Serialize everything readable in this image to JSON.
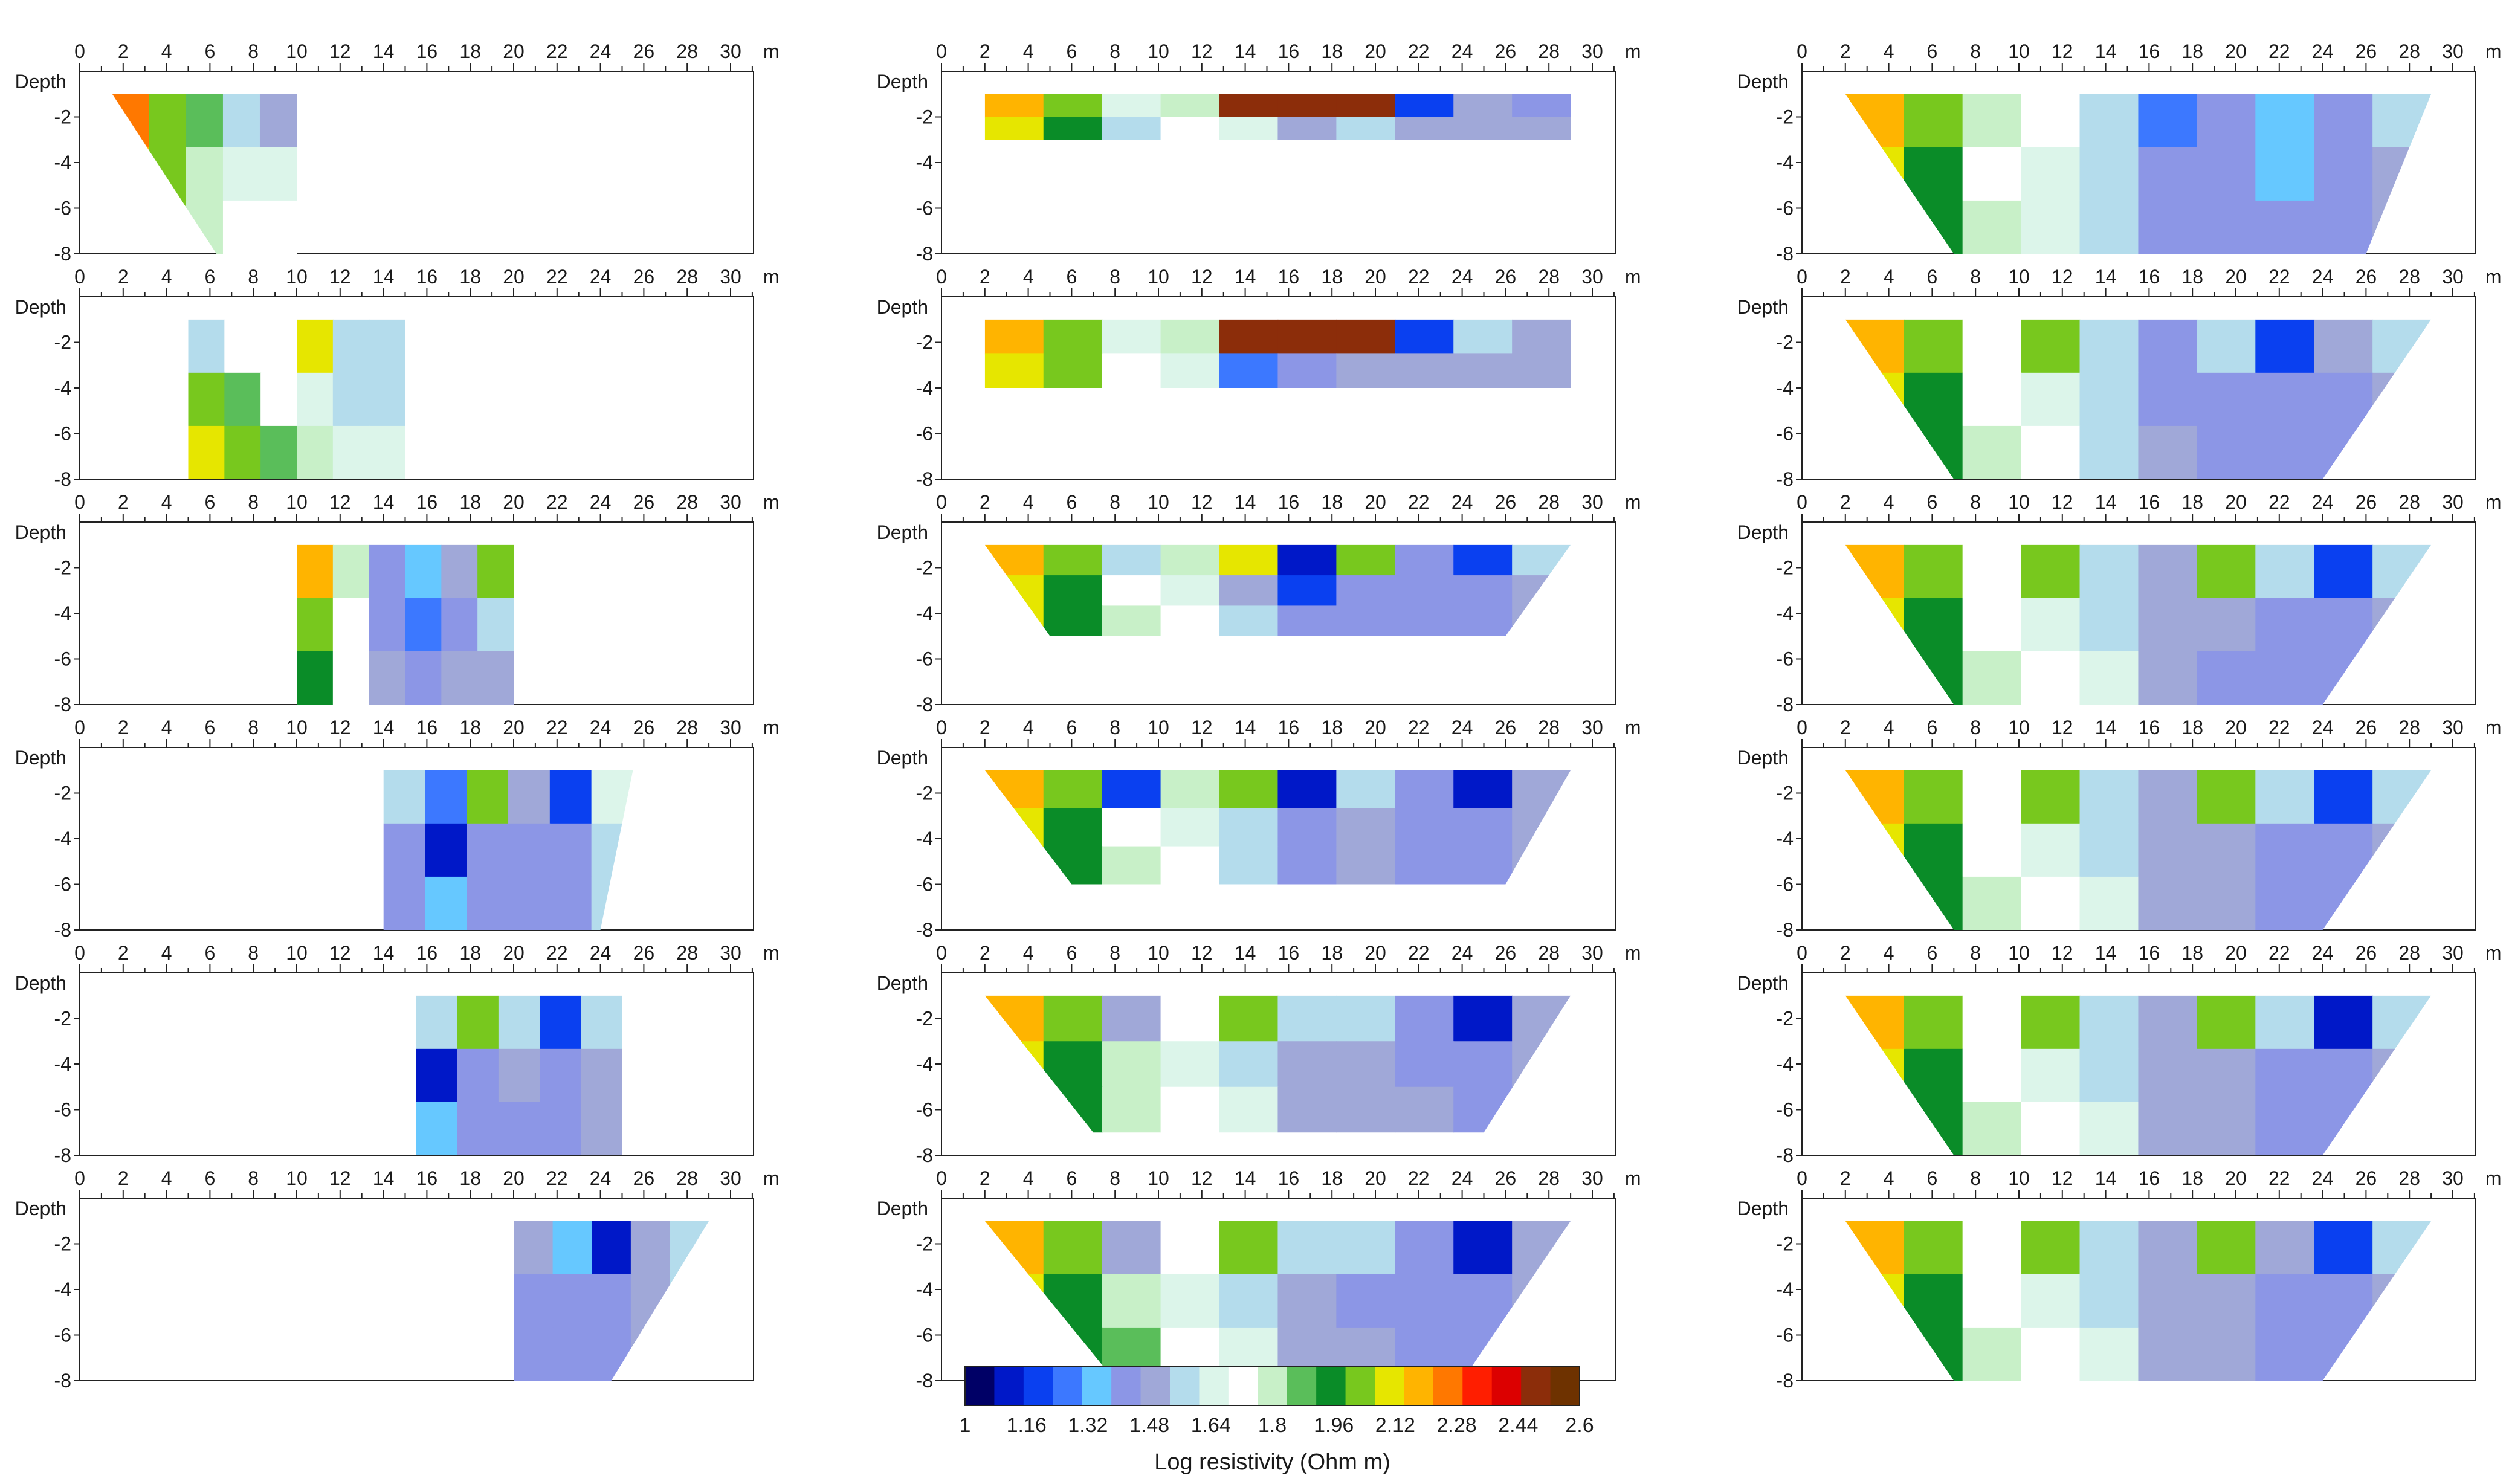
{
  "chart_data": {
    "type": "heatmap",
    "x_unit": "m",
    "y_label": "Depth",
    "x_range": [
      0,
      31
    ],
    "y_range": [
      -8,
      0
    ],
    "x_ticks": [
      0,
      2,
      4,
      6,
      8,
      10,
      12,
      14,
      16,
      18,
      20,
      22,
      24,
      26,
      28,
      30
    ],
    "y_ticks": [
      -2,
      -4,
      -6,
      -8
    ],
    "colorbar": {
      "label": "Log resistivity (Ohm m)",
      "ticks": [
        "1",
        "1.16",
        "1.32",
        "1.48",
        "1.64",
        "1.8",
        "1.96",
        "2.12",
        "2.28",
        "2.44",
        "2.6"
      ],
      "min": 1,
      "max": 2.6,
      "colors": [
        "#000066",
        "#0018c8",
        "#0a40f0",
        "#3c78ff",
        "#66c8ff",
        "#8c96e6",
        "#a0a8d8",
        "#b4dcec",
        "#dcf5ea",
        "#ffffff",
        "#c8f0c8",
        "#5abe5a",
        "#0a8c28",
        "#78c81e",
        "#e6e600",
        "#ffb400",
        "#ff7800",
        "#ff1e00",
        "#dc0000",
        "#8c2d0a",
        "#6e3200"
      ]
    },
    "columns": [
      {
        "name": "column-1",
        "panels": [
          {
            "type": "trapezoid",
            "x_left": 1.5,
            "x_right": 10,
            "x_left_bottom": 6.3,
            "x_right_bottom": 10,
            "depth_min": -1,
            "depth_max": -8,
            "values": [
              [
                2.24,
                2.05,
                1.85,
                1.6,
                1.52
              ],
              [
                2.2,
                2.02,
                1.82,
                1.66,
                1.64
              ],
              [
                2.15,
                2.0,
                1.83,
                1.7,
                1.7
              ]
            ]
          },
          {
            "type": "trapezoid",
            "x_left": 5,
            "x_right": 15,
            "x_left_bottom": 5,
            "x_right_bottom": 15,
            "depth_min": -1,
            "depth_max": -8,
            "values": [
              [
                1.55,
                1.7,
                1.75,
                2.1,
                1.6,
                1.55
              ],
              [
                2.0,
                1.85,
                1.76,
                1.62,
                1.6,
                1.58
              ],
              [
                2.1,
                2.02,
                1.9,
                1.78,
                1.64,
                1.62
              ]
            ]
          },
          {
            "type": "trapezoid",
            "x_left": 10,
            "x_right": 20,
            "x_left_bottom": 10,
            "x_right_bottom": 20,
            "depth_min": -1,
            "depth_max": -8,
            "values": [
              [
                2.15,
                1.8,
                1.45,
                1.32,
                1.5,
                2.0
              ],
              [
                2.05,
                1.75,
                1.4,
                1.3,
                1.45,
                1.56
              ],
              [
                1.98,
                1.74,
                1.46,
                1.44,
                1.48,
                1.5
              ]
            ]
          },
          {
            "type": "trapezoid",
            "x_left": 14,
            "x_right": 25.5,
            "x_left_bottom": 14,
            "x_right_bottom": 24,
            "depth_min": -1,
            "depth_max": -8,
            "values": [
              [
                1.6,
                1.25,
                2.05,
                1.48,
                1.2,
                1.62
              ],
              [
                1.45,
                1.15,
                1.44,
                1.45,
                1.42,
                1.56
              ],
              [
                1.44,
                1.38,
                1.4,
                1.42,
                1.44,
                1.55
              ]
            ]
          },
          {
            "type": "trapezoid",
            "x_left": 15.5,
            "x_right": 25,
            "x_left_bottom": 15.5,
            "x_right_bottom": 25,
            "depth_min": -1,
            "depth_max": -8,
            "values": [
              [
                1.55,
                2.05,
                1.6,
                1.2,
                1.58
              ],
              [
                1.15,
                1.44,
                1.46,
                1.42,
                1.5
              ],
              [
                1.38,
                1.44,
                1.45,
                1.44,
                1.48
              ]
            ]
          },
          {
            "type": "trapezoid",
            "x_left": 20,
            "x_right": 29,
            "x_left_bottom": 20,
            "x_right_bottom": 24.5,
            "depth_min": -1,
            "depth_max": -8,
            "values": [
              [
                1.5,
                1.35,
                1.15,
                1.5,
                1.6
              ],
              [
                1.44,
                1.42,
                1.42,
                1.48,
                1.55
              ],
              [
                1.44,
                1.43,
                1.44,
                1.46,
                1.5
              ]
            ]
          }
        ]
      },
      {
        "name": "column-2",
        "panels": [
          {
            "type": "trapezoid",
            "x_left": 2,
            "x_right": 29,
            "x_left_bottom": 2,
            "x_right_bottom": 29,
            "depth_min": -1,
            "depth_max": -3,
            "values": [
              [
                2.2,
                2.05,
                1.65,
                1.82,
                2.5,
                2.5,
                2.5,
                1.2,
                1.5,
                1.45
              ],
              [
                2.1,
                1.95,
                1.6,
                1.7,
                1.64,
                1.5,
                1.55,
                1.48,
                1.5,
                1.48
              ]
            ]
          },
          {
            "type": "trapezoid",
            "x_left": 2,
            "x_right": 29,
            "x_left_bottom": 2,
            "x_right_bottom": 29,
            "depth_min": -1,
            "depth_max": -4,
            "values": [
              [
                2.2,
                2.05,
                1.62,
                1.8,
                2.5,
                2.5,
                2.5,
                1.2,
                1.55,
                1.48
              ],
              [
                2.1,
                2.0,
                1.7,
                1.64,
                1.3,
                1.45,
                1.5,
                1.48,
                1.46,
                1.5
              ]
            ]
          },
          {
            "type": "trapezoid",
            "x_left": 2,
            "x_right": 29,
            "x_left_bottom": 5,
            "x_right_bottom": 26,
            "depth_min": -1,
            "depth_max": -5,
            "values": [
              [
                2.2,
                2.05,
                1.55,
                1.82,
                2.1,
                1.12,
                2.05,
                1.45,
                1.2,
                1.55
              ],
              [
                2.12,
                1.98,
                1.76,
                1.68,
                1.5,
                1.2,
                1.45,
                1.45,
                1.44,
                1.48
              ],
              [
                2.08,
                1.96,
                1.8,
                1.7,
                1.55,
                1.4,
                1.44,
                1.44,
                1.45,
                1.5
              ]
            ]
          },
          {
            "type": "trapezoid",
            "x_left": 2,
            "x_right": 29,
            "x_left_bottom": 6,
            "x_right_bottom": 26,
            "depth_min": -1,
            "depth_max": -6,
            "values": [
              [
                2.2,
                2.05,
                1.2,
                1.8,
                2.05,
                1.12,
                1.55,
                1.45,
                1.15,
                1.5
              ],
              [
                2.12,
                1.98,
                1.76,
                1.68,
                1.55,
                1.4,
                1.5,
                1.45,
                1.44,
                1.46
              ],
              [
                2.08,
                1.96,
                1.82,
                1.72,
                1.6,
                1.45,
                1.46,
                1.44,
                1.45,
                1.48
              ]
            ]
          },
          {
            "type": "trapezoid",
            "x_left": 2,
            "x_right": 29,
            "x_left_bottom": 7,
            "x_right_bottom": 25,
            "depth_min": -1,
            "depth_max": -7,
            "values": [
              [
                2.2,
                2.0,
                1.5,
                1.75,
                2.05,
                1.55,
                1.6,
                1.45,
                1.15,
                1.5
              ],
              [
                2.12,
                1.98,
                1.78,
                1.68,
                1.6,
                1.5,
                1.46,
                1.45,
                1.44,
                1.48
              ],
              [
                2.05,
                1.95,
                1.82,
                1.72,
                1.62,
                1.5,
                1.48,
                1.46,
                1.45,
                1.48
              ]
            ]
          },
          {
            "type": "trapezoid",
            "x_left": 2,
            "x_right": 29,
            "x_left_bottom": 8,
            "x_right_bottom": 24,
            "depth_min": -1,
            "depth_max": -8,
            "values": [
              [
                2.2,
                2.0,
                1.5,
                1.75,
                2.05,
                1.55,
                1.6,
                1.45,
                1.15,
                1.5
              ],
              [
                2.12,
                1.98,
                1.8,
                1.68,
                1.6,
                1.5,
                1.45,
                1.45,
                1.44,
                1.48
              ],
              [
                2.05,
                1.95,
                1.84,
                1.72,
                1.62,
                1.5,
                1.47,
                1.45,
                1.45,
                1.48
              ]
            ]
          }
        ]
      },
      {
        "name": "column-3",
        "panels": [
          {
            "type": "trapezoid",
            "x_left": 2,
            "x_right": 29,
            "x_left_bottom": 7,
            "x_right_bottom": 26,
            "depth_min": -1,
            "depth_max": -8,
            "values": [
              [
                2.2,
                2.05,
                1.82,
                1.72,
                1.55,
                1.3,
                1.45,
                1.35,
                1.4,
                1.55
              ],
              [
                2.12,
                1.98,
                1.75,
                1.65,
                1.6,
                1.45,
                1.4,
                1.38,
                1.42,
                1.52
              ],
              [
                2.05,
                1.95,
                1.8,
                1.68,
                1.58,
                1.45,
                1.44,
                1.42,
                1.44,
                1.5
              ]
            ]
          },
          {
            "type": "trapezoid",
            "x_left": 2,
            "x_right": 29,
            "x_left_bottom": 7,
            "x_right_bottom": 24,
            "depth_min": -1,
            "depth_max": -8,
            "values": [
              [
                2.2,
                2.05,
                1.7,
                2.05,
                1.58,
                1.45,
                1.55,
                1.2,
                1.5,
                1.6
              ],
              [
                2.12,
                1.98,
                1.75,
                1.66,
                1.6,
                1.45,
                1.42,
                1.44,
                1.45,
                1.52
              ],
              [
                2.05,
                1.95,
                1.8,
                1.7,
                1.6,
                1.48,
                1.44,
                1.44,
                1.45,
                1.5
              ]
            ]
          },
          {
            "type": "trapezoid",
            "x_left": 2,
            "x_right": 29,
            "x_left_bottom": 7,
            "x_right_bottom": 24,
            "depth_min": -1,
            "depth_max": -8,
            "values": [
              [
                2.2,
                2.05,
                1.75,
                2.05,
                1.55,
                1.5,
                2.05,
                1.55,
                1.2,
                1.6
              ],
              [
                2.12,
                1.98,
                1.76,
                1.66,
                1.6,
                1.5,
                1.48,
                1.42,
                1.45,
                1.52
              ],
              [
                2.05,
                1.95,
                1.82,
                1.7,
                1.62,
                1.5,
                1.45,
                1.44,
                1.45,
                1.5
              ]
            ]
          },
          {
            "type": "trapezoid",
            "x_left": 2,
            "x_right": 29,
            "x_left_bottom": 7,
            "x_right_bottom": 24,
            "depth_min": -1,
            "depth_max": -8,
            "values": [
              [
                2.2,
                2.05,
                1.72,
                2.05,
                1.55,
                1.5,
                2.05,
                1.55,
                1.2,
                1.6
              ],
              [
                2.12,
                1.98,
                1.76,
                1.66,
                1.6,
                1.5,
                1.46,
                1.44,
                1.45,
                1.52
              ],
              [
                2.05,
                1.95,
                1.82,
                1.7,
                1.62,
                1.5,
                1.46,
                1.44,
                1.45,
                1.5
              ]
            ]
          },
          {
            "type": "trapezoid",
            "x_left": 2,
            "x_right": 29,
            "x_left_bottom": 7,
            "x_right_bottom": 24,
            "depth_min": -1,
            "depth_max": -8,
            "values": [
              [
                2.2,
                2.05,
                1.72,
                2.05,
                1.55,
                1.5,
                2.05,
                1.55,
                1.12,
                1.6
              ],
              [
                2.12,
                1.98,
                1.76,
                1.66,
                1.6,
                1.5,
                1.46,
                1.44,
                1.45,
                1.52
              ],
              [
                2.05,
                1.95,
                1.82,
                1.7,
                1.62,
                1.5,
                1.46,
                1.44,
                1.45,
                1.5
              ]
            ]
          },
          {
            "type": "trapezoid",
            "x_left": 2,
            "x_right": 29,
            "x_left_bottom": 7,
            "x_right_bottom": 24,
            "depth_min": -1,
            "depth_max": -8,
            "values": [
              [
                2.2,
                2.05,
                1.72,
                2.05,
                1.58,
                1.5,
                2.05,
                1.5,
                1.2,
                1.6
              ],
              [
                2.12,
                1.98,
                1.76,
                1.66,
                1.6,
                1.5,
                1.46,
                1.44,
                1.45,
                1.52
              ],
              [
                2.05,
                1.95,
                1.82,
                1.7,
                1.62,
                1.5,
                1.46,
                1.44,
                1.45,
                1.5
              ]
            ]
          }
        ]
      }
    ]
  }
}
